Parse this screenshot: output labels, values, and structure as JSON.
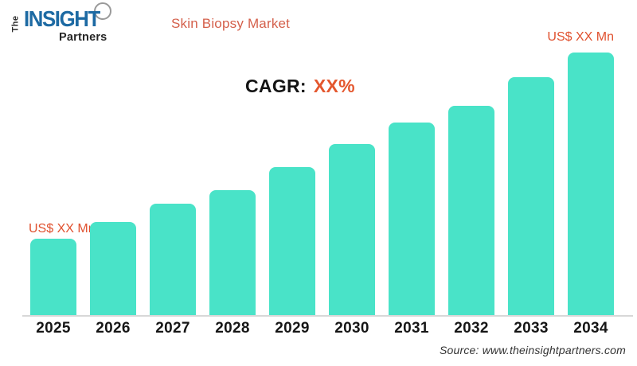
{
  "logo": {
    "the": "The",
    "insight": "INSIGHT",
    "partners": "Partners"
  },
  "header": {
    "title": "Skin Biopsy Market"
  },
  "cagr": {
    "label": "CAGR:",
    "value": "XX%"
  },
  "source": {
    "text": "Source: www.theinsightpartners.com"
  },
  "colors": {
    "bar": "#49e3c8",
    "accent_orange": "#e4572e",
    "title_orange": "#d45f4a",
    "logo_blue": "#1d6aa3",
    "axis_line": "#d8d8d8",
    "year_text": "#161616"
  },
  "chart_data": {
    "type": "bar",
    "title": "Skin Biopsy Market",
    "categories": [
      "2025",
      "2026",
      "2027",
      "2028",
      "2029",
      "2030",
      "2031",
      "2032",
      "2033",
      "2034"
    ],
    "values_relative_pct_of_2034": [
      29.1,
      35.5,
      42.4,
      47.6,
      56.4,
      65.2,
      73.3,
      79.7,
      90.6,
      100
    ],
    "value_labels": [
      {
        "category": "2025",
        "label": "US$ XX Mn"
      },
      {
        "category": "2034",
        "label": "US$ XX Mn"
      }
    ],
    "annotation": "CAGR: XX%",
    "xlabel": "",
    "ylabel": "",
    "grid": false,
    "legend": false,
    "bar_color": "#49e3c8"
  }
}
